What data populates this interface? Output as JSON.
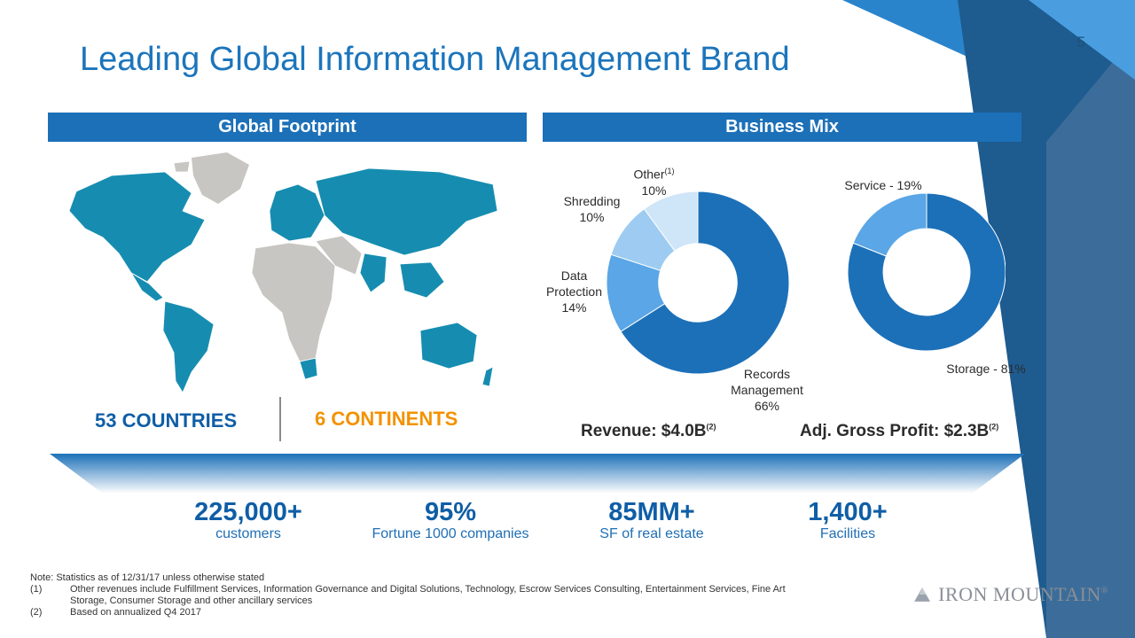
{
  "page_number": "5",
  "title": "Leading Global Information Management Brand",
  "sections": {
    "left_header": "Global Footprint",
    "right_header": "Business Mix"
  },
  "footprint": {
    "countries": "53 COUNTRIES",
    "continents": "6 CONTINENTS",
    "countries_color": "#0f5ea6",
    "continents_color": "#f39200"
  },
  "chart_data": [
    {
      "type": "pie",
      "variant": "donut",
      "kpi_label": "Revenue: $4.0B",
      "kpi_note": "(2)",
      "slices": [
        {
          "name": "Records Management",
          "value": 66,
          "color": "#1c70b8",
          "label_lines": [
            "Records",
            "Management",
            "66%"
          ]
        },
        {
          "name": "Data Protection",
          "value": 14,
          "color": "#5aa6e6",
          "label_lines": [
            "Data",
            "Protection",
            "14%"
          ]
        },
        {
          "name": "Shredding",
          "value": 10,
          "color": "#9ecbf1",
          "label_lines": [
            "Shredding",
            "10%"
          ]
        },
        {
          "name": "Other",
          "value": 10,
          "color": "#cfe5f8",
          "label_lines": [
            "Other",
            "10%"
          ],
          "note": "(1)"
        }
      ]
    },
    {
      "type": "pie",
      "variant": "donut",
      "kpi_label": "Adj. Gross Profit: $2.3B",
      "kpi_note": "(2)",
      "slices": [
        {
          "name": "Storage",
          "value": 81,
          "color": "#1c70b8",
          "label": "Storage - 81%"
        },
        {
          "name": "Service",
          "value": 19,
          "color": "#5aa6e6",
          "label": "Service - 19%"
        }
      ]
    }
  ],
  "metrics": [
    {
      "value": "225,000+",
      "label": "customers"
    },
    {
      "value": "95%",
      "label": "Fortune 1000 companies"
    },
    {
      "value": "85MM+",
      "label": "SF of real estate"
    },
    {
      "value": "1,400+",
      "label": "Facilities"
    }
  ],
  "notes": {
    "note": "Note: Statistics as of 12/31/17 unless otherwise stated",
    "items": [
      {
        "key": "(1)",
        "text": "Other revenues include Fulfillment Services, Information Governance and Digital Solutions, Technology, Escrow Services Consulting, Entertainment Services, Fine Art"
      },
      {
        "key": "",
        "text": "Storage, Consumer Storage and other ancillary services"
      },
      {
        "key": "(2)",
        "text": "Based on annualized Q4 2017"
      }
    ]
  },
  "logo": {
    "text": "IRON MOUNTAIN",
    "mark": "®"
  }
}
